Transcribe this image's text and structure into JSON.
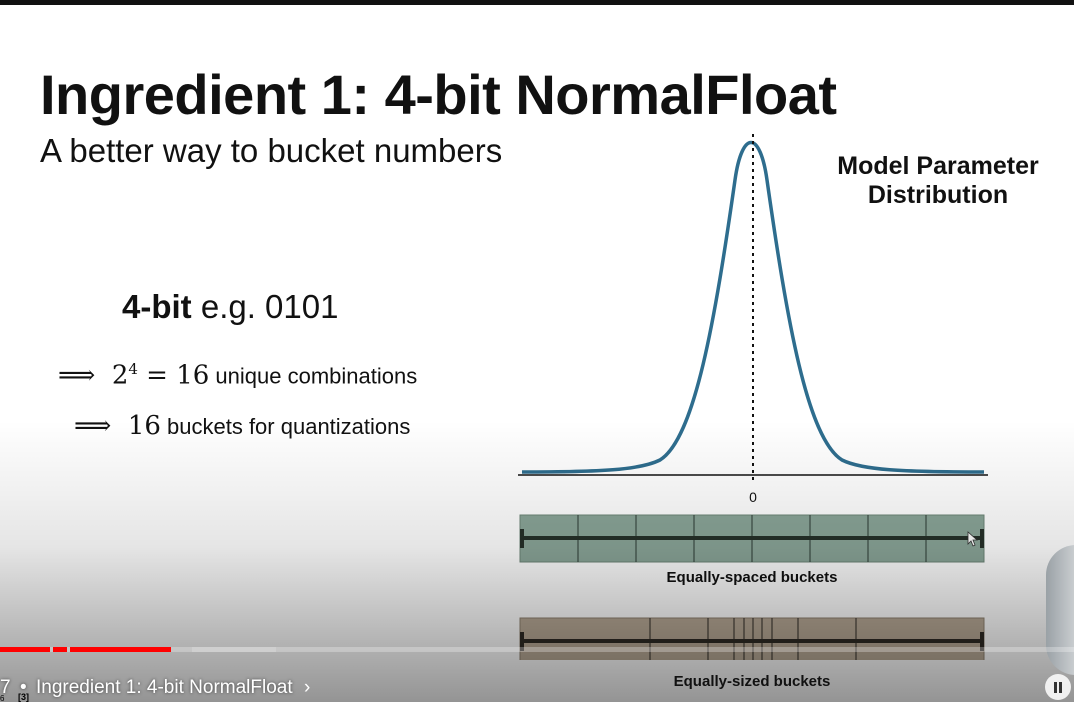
{
  "slide": {
    "title": "Ingredient 1: 4-bit NormalFloat",
    "subtitle": "A better way to bucket numbers",
    "bit_bold": "4-bit",
    "bit_rest": " e.g. 0101",
    "implication_1": {
      "arrow": "⟹",
      "base": "2",
      "exponent": "4",
      "equals": " = 16",
      "text": " unique combinations"
    },
    "implication_2": {
      "arrow": "⟹",
      "number": "16",
      "text": " buckets for quantizations"
    },
    "distribution_label": "Model Parameter Distribution",
    "zero_label": "0",
    "equal_spaced_label": "Equally-spaced buckets",
    "equal_sized_label": "Equally-sized buckets",
    "colors": {
      "curve": "#2e6d8e",
      "equal_spaced_fill": "#8aa598",
      "equal_sized_fill": "#b8a996",
      "progress_played": "#ff0000",
      "progress_buffered": "#cfcfcf"
    }
  },
  "player": {
    "chapter_prefix": "7",
    "separator": "•",
    "chapter_title": "Ingredient 1: 4-bit NormalFloat",
    "chevron": "›",
    "progress_played_fraction": 0.16,
    "corner_marker": "[3]",
    "corner_num": "6"
  }
}
